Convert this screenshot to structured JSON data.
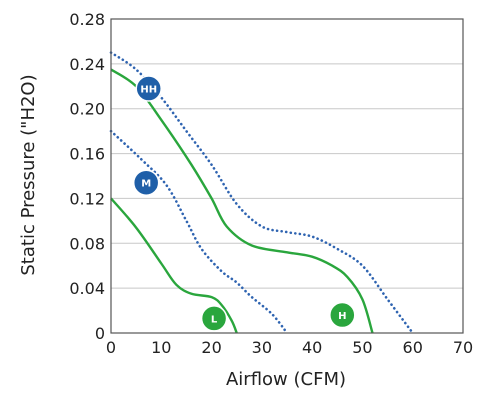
{
  "chart_data": {
    "type": "line",
    "xlabel": "Airflow (CFM)",
    "ylabel": "Static Pressure (\"H2O)",
    "xlim": [
      0,
      70
    ],
    "ylim": [
      0,
      0.28
    ],
    "x_ticks": [
      "0",
      "10",
      "20",
      "30",
      "40",
      "50",
      "60",
      "70"
    ],
    "y_ticks": [
      "0",
      "0.04",
      "0.08",
      "0.12",
      "0.16",
      "0.20",
      "0.24",
      "0.28"
    ],
    "grid": {
      "horizontal": true,
      "vertical": false
    },
    "series": [
      {
        "name": "L",
        "style": "solid",
        "color": "#2aa63d",
        "points": [
          [
            0,
            0.12
          ],
          [
            5,
            0.094
          ],
          [
            10,
            0.062
          ],
          [
            13,
            0.043
          ],
          [
            16,
            0.035
          ],
          [
            20,
            0.032
          ],
          [
            22,
            0.025
          ],
          [
            24,
            0.011
          ],
          [
            25,
            0
          ]
        ],
        "marker": {
          "label": "L",
          "x": 20.5,
          "y": 0.013,
          "color": "#2aa63d"
        }
      },
      {
        "name": "M",
        "style": "dotted",
        "color": "#2f64b1",
        "points": [
          [
            0,
            0.18
          ],
          [
            6,
            0.155
          ],
          [
            11,
            0.132
          ],
          [
            15,
            0.1
          ],
          [
            18,
            0.075
          ],
          [
            22,
            0.055
          ],
          [
            25,
            0.045
          ],
          [
            28,
            0.032
          ],
          [
            32,
            0.017
          ],
          [
            35,
            0
          ]
        ],
        "marker": {
          "label": "M",
          "x": 7,
          "y": 0.134,
          "color": "#1f5fa8"
        }
      },
      {
        "name": "H",
        "style": "solid",
        "color": "#2aa63d",
        "points": [
          [
            0,
            0.235
          ],
          [
            5,
            0.22
          ],
          [
            10,
            0.19
          ],
          [
            16,
            0.15
          ],
          [
            20,
            0.12
          ],
          [
            23,
            0.095
          ],
          [
            28,
            0.078
          ],
          [
            35,
            0.072
          ],
          [
            40,
            0.068
          ],
          [
            44,
            0.06
          ],
          [
            47,
            0.05
          ],
          [
            50,
            0.03
          ],
          [
            52,
            0
          ]
        ],
        "marker": {
          "label": "H",
          "x": 46,
          "y": 0.016,
          "color": "#2aa63d"
        }
      },
      {
        "name": "HH",
        "style": "dotted",
        "color": "#2f64b1",
        "points": [
          [
            0,
            0.25
          ],
          [
            5,
            0.235
          ],
          [
            10,
            0.21
          ],
          [
            15,
            0.18
          ],
          [
            20,
            0.15
          ],
          [
            25,
            0.115
          ],
          [
            30,
            0.095
          ],
          [
            35,
            0.09
          ],
          [
            40,
            0.086
          ],
          [
            45,
            0.075
          ],
          [
            50,
            0.06
          ],
          [
            55,
            0.03
          ],
          [
            60,
            0
          ]
        ],
        "marker": {
          "label": "HH",
          "x": 7.5,
          "y": 0.218,
          "color": "#1f5fa8"
        }
      }
    ]
  }
}
